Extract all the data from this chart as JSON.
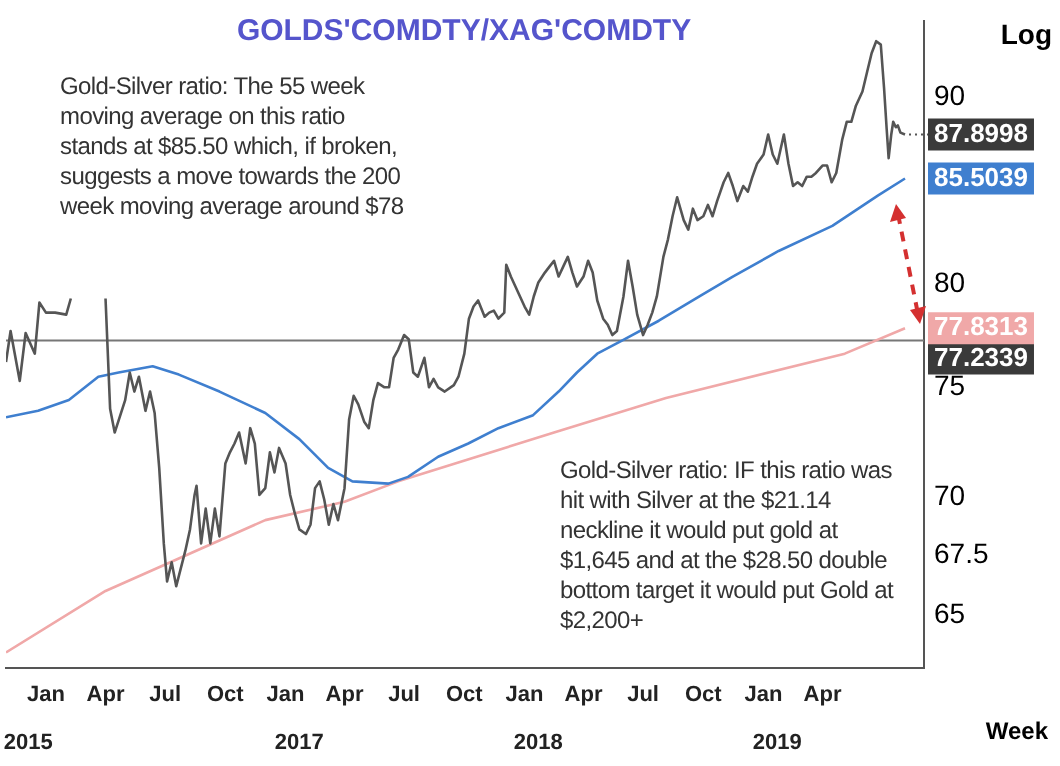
{
  "chart_data": {
    "type": "line",
    "title": "GOLDS'COMDTY/XAG'COMDTY",
    "xlabel": "Week",
    "ylabel": "Log",
    "log": "y",
    "xlim": [
      "2015-11-01",
      "2019-09-03"
    ],
    "x2lim": [
      "2015-11-01",
      "2019-09-03"
    ],
    "x2ticks": [
      {
        "value": "2015-12-05",
        "label": "2015"
      },
      {
        "value": "2017-01-22",
        "label": "2017"
      },
      {
        "value": "2018-01-22",
        "label": "2018"
      },
      {
        "value": "2019-01-22",
        "label": "2019"
      }
    ],
    "xticks": [
      {
        "value": "2016-01-01",
        "label": "Jan"
      },
      {
        "value": "2016-04-01",
        "label": "Apr"
      },
      {
        "value": "2016-07-01",
        "label": "Jul"
      },
      {
        "value": "2016-10-01",
        "label": "Oct"
      },
      {
        "value": "2017-01-01",
        "label": "Jan"
      },
      {
        "value": "2017-04-01",
        "label": "Apr"
      },
      {
        "value": "2017-07-01",
        "label": "Jul"
      },
      {
        "value": "2017-10-01",
        "label": "Oct"
      },
      {
        "value": "2018-01-01",
        "label": "Jan"
      },
      {
        "value": "2018-04-01",
        "label": "Apr"
      },
      {
        "value": "2018-07-01",
        "label": "Jul"
      },
      {
        "value": "2018-10-01",
        "label": "Oct"
      },
      {
        "value": "2019-01-01",
        "label": "Jan"
      },
      {
        "value": "2019-04-01",
        "label": "Apr"
      }
    ],
    "ylim": [
      62.9,
      94.4
    ],
    "yticks": [
      65,
      67.5,
      70,
      75,
      80,
      90
    ],
    "series": [
      {
        "color": "#555555",
        "x": [
          "2015-11-01",
          "2015-11-08",
          "2015-11-22",
          "2015-12-01",
          "2015-12-15",
          "2015-12-22",
          "2016-01-01",
          "2016-01-15",
          "2016-02-01",
          "2016-02-08",
          "2016-03-01",
          "2016-04-01",
          "2016-04-08",
          "2016-04-15",
          "2016-05-01",
          "2016-05-08",
          "2016-05-15",
          "2016-05-22",
          "2016-06-01",
          "2016-06-08",
          "2016-06-15",
          "2016-06-22",
          "2016-06-29",
          "2016-07-04",
          "2016-07-11",
          "2016-07-18",
          "2016-08-01",
          "2016-08-08",
          "2016-08-15",
          "2016-08-18",
          "2016-08-25",
          "2016-09-01",
          "2016-09-08",
          "2016-09-15",
          "2016-09-22",
          "2016-10-01",
          "2016-10-08",
          "2016-10-15",
          "2016-10-22",
          "2016-11-01",
          "2016-11-08",
          "2016-11-15",
          "2016-11-22",
          "2016-12-01",
          "2016-12-08",
          "2016-12-15",
          "2016-12-22",
          "2017-01-01",
          "2017-01-08",
          "2017-01-15",
          "2017-01-22",
          "2017-02-01",
          "2017-02-08",
          "2017-02-15",
          "2017-02-22",
          "2017-03-01",
          "2017-03-08",
          "2017-03-15",
          "2017-03-22",
          "2017-04-01",
          "2017-04-08",
          "2017-04-15",
          "2017-04-22",
          "2017-05-01",
          "2017-05-08",
          "2017-05-15",
          "2017-05-22",
          "2017-06-01",
          "2017-06-08",
          "2017-06-15",
          "2017-06-22",
          "2017-07-01",
          "2017-07-08",
          "2017-07-15",
          "2017-07-22",
          "2017-08-01",
          "2017-08-08",
          "2017-08-15",
          "2017-08-22",
          "2017-09-01",
          "2017-09-15",
          "2017-09-22",
          "2017-10-01",
          "2017-10-08",
          "2017-10-15",
          "2017-10-22",
          "2017-11-01",
          "2017-11-08",
          "2017-11-15",
          "2017-11-22",
          "2017-12-01",
          "2017-12-04",
          "2017-12-11",
          "2017-12-18",
          "2018-01-01",
          "2018-01-08",
          "2018-01-15",
          "2018-01-22",
          "2018-02-01",
          "2018-02-08",
          "2018-02-15",
          "2018-02-22",
          "2018-03-01",
          "2018-03-08",
          "2018-03-15",
          "2018-03-22",
          "2018-04-01",
          "2018-04-08",
          "2018-04-15",
          "2018-04-22",
          "2018-05-01",
          "2018-05-08",
          "2018-05-15",
          "2018-05-22",
          "2018-06-01",
          "2018-06-08",
          "2018-06-15",
          "2018-06-22",
          "2018-07-01",
          "2018-07-08",
          "2018-07-15",
          "2018-07-22",
          "2018-08-01",
          "2018-08-08",
          "2018-08-15",
          "2018-08-22",
          "2018-09-01",
          "2018-09-08",
          "2018-09-15",
          "2018-09-22",
          "2018-10-01",
          "2018-10-08",
          "2018-10-15",
          "2018-10-22",
          "2018-11-01",
          "2018-11-08",
          "2018-11-15",
          "2018-11-22",
          "2018-12-01",
          "2018-12-08",
          "2018-12-15",
          "2018-12-22",
          "2019-01-01",
          "2019-01-08",
          "2019-01-15",
          "2019-01-22",
          "2019-02-01",
          "2019-02-08",
          "2019-02-15",
          "2019-02-22",
          "2019-03-01",
          "2019-03-08",
          "2019-03-15",
          "2019-03-22",
          "2019-04-01",
          "2019-04-08",
          "2019-04-15",
          "2019-04-22",
          "2019-05-01",
          "2019-05-08",
          "2019-05-15",
          "2019-05-22",
          "2019-06-01",
          "2019-06-08",
          "2019-06-15",
          "2019-06-22",
          "2019-06-29",
          "2019-07-04",
          "2019-07-08",
          "2019-07-11",
          "2019-07-15",
          "2019-07-18",
          "2019-07-22",
          "2019-07-25",
          "2019-07-29",
          "2019-08-05"
        ],
        "values": [
          76.2,
          77.7,
          75.3,
          77.6,
          76.6,
          79.1,
          78.6,
          78.6,
          78.5,
          79.3,
          null,
          79.3,
          74.0,
          72.9,
          74.4,
          75.7,
          74.8,
          75.5,
          73.9,
          74.8,
          73.8,
          71.3,
          68.0,
          66.4,
          67.2,
          66.2,
          67.7,
          68.6,
          70.1,
          70.5,
          68.0,
          69.5,
          68.0,
          69.5,
          68.3,
          71.5,
          72.0,
          72.4,
          72.9,
          71.5,
          73.1,
          72.4,
          70.1,
          70.4,
          72.0,
          71.1,
          72.2,
          71.5,
          70.1,
          69.3,
          68.6,
          68.4,
          68.8,
          70.4,
          70.7,
          69.9,
          68.8,
          69.7,
          69.0,
          70.4,
          73.5,
          74.6,
          74.2,
          73.4,
          73.1,
          74.4,
          75.2,
          75.0,
          75.0,
          76.4,
          76.8,
          77.5,
          77.3,
          75.7,
          75.5,
          76.4,
          75.0,
          75.4,
          75.0,
          74.8,
          75.1,
          75.5,
          76.6,
          78.3,
          78.9,
          79.2,
          78.4,
          78.6,
          78.7,
          78.3,
          78.6,
          81.0,
          80.4,
          79.9,
          78.9,
          78.5,
          79.4,
          80.1,
          80.6,
          80.9,
          81.2,
          80.4,
          80.9,
          81.4,
          80.6,
          79.9,
          80.4,
          81.2,
          80.6,
          79.2,
          78.3,
          78.0,
          77.5,
          77.7,
          79.4,
          81.2,
          79.9,
          78.5,
          77.5,
          78.0,
          78.6,
          79.4,
          81.4,
          82.3,
          83.5,
          84.5,
          83.3,
          82.8,
          83.9,
          83.3,
          83.5,
          84.1,
          83.5,
          84.3,
          85.3,
          85.8,
          85.1,
          84.3,
          85.1,
          84.8,
          85.6,
          86.3,
          86.8,
          87.9,
          86.8,
          86.3,
          87.9,
          86.3,
          85.1,
          85.3,
          85.1,
          85.6,
          85.6,
          85.8,
          86.2,
          86.2,
          85.3,
          85.8,
          87.6,
          88.6,
          88.6,
          89.5,
          90.3,
          91.4,
          92.5,
          93.2,
          93.0,
          90.5,
          88.2,
          86.6,
          87.9,
          88.6,
          88.3,
          88.4,
          88.0,
          87.8998
        ]
      },
      {
        "color": "#3f7fcf",
        "x": [
          "2015-11-01",
          "2015-12-20",
          "2016-02-05",
          "2016-03-21",
          "2016-04-21",
          "2016-06-12",
          "2016-07-22",
          "2016-09-22",
          "2016-12-01",
          "2017-01-22",
          "2017-03-07",
          "2017-04-13",
          "2017-06-07",
          "2017-07-07",
          "2017-08-22",
          "2017-10-07",
          "2017-11-22",
          "2018-01-14",
          "2018-02-22",
          "2018-03-22",
          "2018-04-22",
          "2018-06-03",
          "2018-07-25",
          "2018-09-25",
          "2018-11-15",
          "2019-01-24",
          "2019-04-16",
          "2019-06-25",
          "2019-08-05"
        ],
        "values": [
          73.6,
          73.9,
          74.4,
          75.5,
          75.7,
          76.0,
          75.6,
          74.8,
          73.8,
          72.6,
          71.3,
          70.7,
          70.6,
          70.9,
          71.8,
          72.4,
          73.1,
          73.7,
          74.8,
          75.7,
          76.6,
          77.3,
          78.2,
          79.4,
          80.4,
          81.7,
          83.0,
          84.6,
          85.5039
        ],
        "value_labels": [
          null,
          null,
          null,
          null,
          null,
          null,
          null,
          null,
          null,
          null,
          null,
          null,
          null,
          null,
          null,
          null,
          null,
          null,
          null,
          null,
          null,
          null,
          null,
          null,
          null,
          null,
          null,
          null,
          "85.5039"
        ]
      },
      {
        "color": "#f0a8a8",
        "x": [
          "2015-11-01",
          "2016-04-01",
          "2016-12-01",
          "2017-04-01",
          "2017-06-22",
          "2018-02-15",
          "2018-08-05",
          "2019-05-05",
          "2019-08-05"
        ],
        "values": [
          63.5,
          66.0,
          69.0,
          69.8,
          70.7,
          72.9,
          74.5,
          76.6,
          77.8313
        ],
        "value_labels": [
          null,
          null,
          null,
          null,
          null,
          null,
          null,
          null,
          "77.8313"
        ]
      }
    ],
    "ref_lines": [
      {
        "axis": "y",
        "value": 77.2339,
        "label": "77.2339",
        "color": "#777777"
      }
    ],
    "annotations": [
      "Gold-Silver ratio: The 55 week moving average on this ratio stands at $85.50 which, if broken, suggests a move towards the 200 week moving average around $78",
      "Gold-Silver ratio: IF this ratio was hit with Silver at the $21.14 neckline it would put gold at $1,645 and at the $28.50 double bottom target it would put Gold at $2,200+",
      {
        "text": "87.8998",
        "x": "2019-08-05",
        "y": 87.8998
      }
    ]
  }
}
